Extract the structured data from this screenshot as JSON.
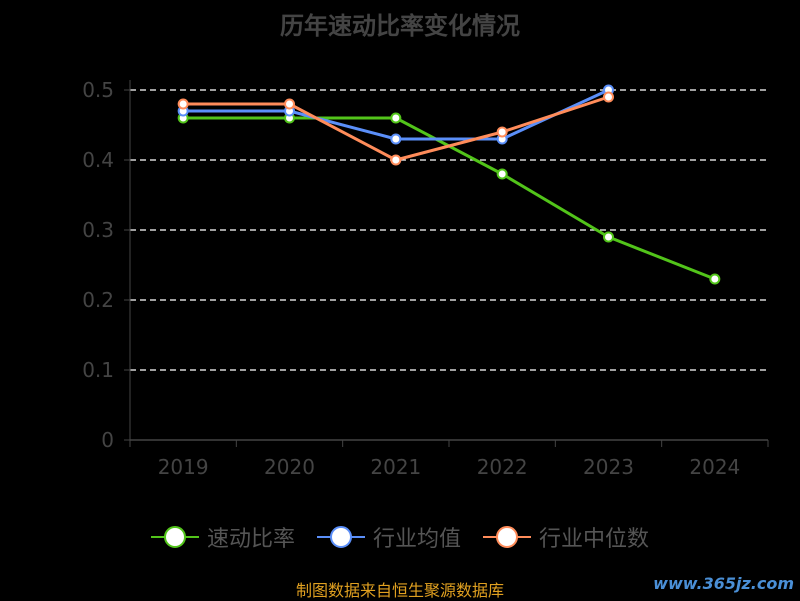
{
  "title": "历年速动比率变化情况",
  "footer": "制图数据来自恒生聚源数据库",
  "watermark": "www.365jz.com",
  "chart_data": {
    "type": "line",
    "title": "历年速动比率变化情况",
    "categories": [
      "2019",
      "2020",
      "2021",
      "2022",
      "2023",
      "2024"
    ],
    "y_ticks": [
      "0",
      "0.1",
      "0.2",
      "0.3",
      "0.4",
      "0.5"
    ],
    "ylim": [
      0,
      0.5
    ],
    "grid": true,
    "legend": "bottom",
    "series": [
      {
        "name": "速动比率",
        "color": "#52c41a",
        "values": [
          0.46,
          0.46,
          0.46,
          0.38,
          0.29,
          0.23
        ]
      },
      {
        "name": "行业均值",
        "color": "#5b8ff9",
        "values": [
          0.47,
          0.47,
          0.43,
          0.43,
          0.5,
          null
        ]
      },
      {
        "name": "行业中位数",
        "color": "#ff8c5a",
        "values": [
          0.48,
          0.48,
          0.4,
          0.44,
          0.49,
          null
        ]
      }
    ]
  }
}
